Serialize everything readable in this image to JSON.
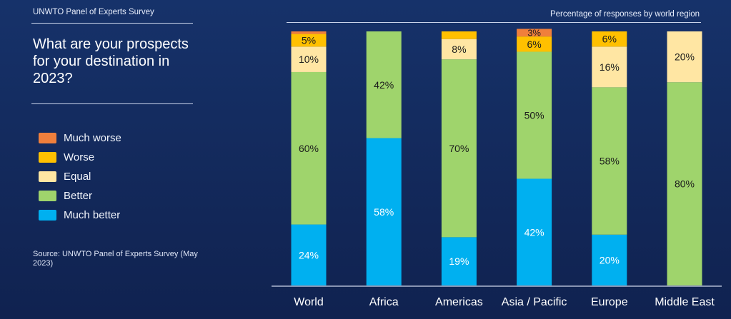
{
  "header": {
    "survey_label": "UNWTO Panel of Experts Survey",
    "question": "What are your prospects for your destination in 2023?"
  },
  "legend": {
    "items": [
      {
        "label": "Much worse",
        "color": "#f07f3c"
      },
      {
        "label": "Worse",
        "color": "#ffc000"
      },
      {
        "label": "Equal",
        "color": "#ffe6a3"
      },
      {
        "label": "Better",
        "color": "#9fd46c"
      },
      {
        "label": "Much better",
        "color": "#00b0f0"
      }
    ]
  },
  "source": "Source: UNWTO Panel of Experts Survey (May 2023)",
  "chart_data": {
    "type": "bar",
    "stacked": true,
    "orientation": "vertical",
    "title": "Percentage of responses by world region",
    "categories": [
      "World",
      "Africa",
      "Americas",
      "Asia / Pacific",
      "Europe",
      "Middle East"
    ],
    "series": [
      {
        "name": "Much better",
        "color": "#00b0f0",
        "values": [
          24,
          58,
          19,
          42,
          20,
          0
        ]
      },
      {
        "name": "Better",
        "color": "#9fd46c",
        "values": [
          60,
          42,
          70,
          50,
          58,
          80
        ]
      },
      {
        "name": "Equal",
        "color": "#ffe6a3",
        "values": [
          10,
          0,
          8,
          0,
          16,
          20
        ]
      },
      {
        "name": "Worse",
        "color": "#ffc000",
        "values": [
          5,
          0,
          3,
          6,
          6,
          0
        ]
      },
      {
        "name": "Much worse",
        "color": "#f07f3c",
        "values": [
          1,
          0,
          0,
          3,
          0,
          0
        ]
      }
    ],
    "data_labels": [
      [
        "24%",
        "58%",
        "19%",
        "42%",
        "20%",
        ""
      ],
      [
        "60%",
        "42%",
        "70%",
        "50%",
        "58%",
        "80%"
      ],
      [
        "10%",
        "",
        "8%",
        "",
        "16%",
        "20%"
      ],
      [
        "5%",
        "",
        "",
        "6%",
        "6%",
        ""
      ],
      [
        "",
        "",
        "",
        "3%",
        "",
        ""
      ]
    ],
    "label_colors": [
      "#ffffff",
      "#1b1b1b",
      "#1b1b1b",
      "#1b1b1b",
      "#1b1b1b"
    ],
    "ylim": [
      0,
      100
    ],
    "grid": false,
    "legend_position": "left"
  }
}
